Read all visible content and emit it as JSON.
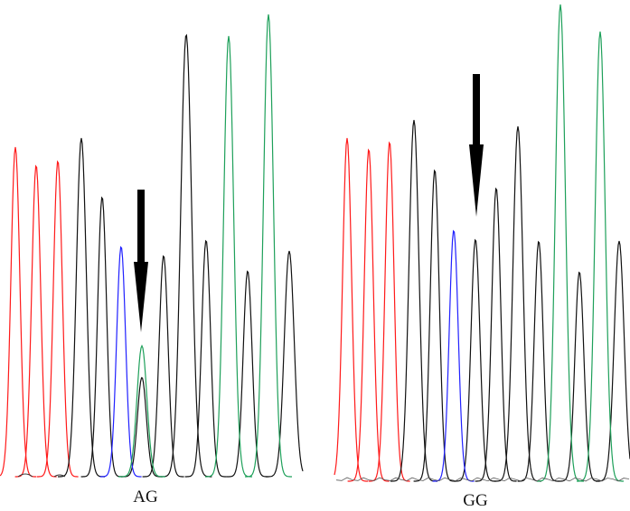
{
  "chart_data": [
    {
      "type": "line",
      "genotype_label": "AG",
      "colors": {
        "A": "#1ea05a",
        "C": "#2020ff",
        "G": "#111111",
        "T": "#ff1a1a"
      },
      "series": [
        {
          "base": "T",
          "peaks": [
            {
              "x": 17,
              "h": 365,
              "w": 9
            },
            {
              "x": 40,
              "h": 345,
              "w": 9
            },
            {
              "x": 64,
              "h": 350,
              "w": 9
            }
          ]
        },
        {
          "base": "G",
          "peaks": [
            {
              "x": 90,
              "h": 375,
              "w": 10
            },
            {
              "x": 113,
              "h": 310,
              "w": 9
            },
            {
              "x": 157,
              "h": 110,
              "w": 9
            },
            {
              "x": 181,
              "h": 245,
              "w": 9
            },
            {
              "x": 206,
              "h": 490,
              "w": 11
            },
            {
              "x": 228,
              "h": 262,
              "w": 9
            },
            {
              "x": 274,
              "h": 228,
              "w": 9
            },
            {
              "x": 320,
              "h": 250,
              "w": 10
            }
          ]
        },
        {
          "base": "C",
          "peaks": [
            {
              "x": 134,
              "h": 255,
              "w": 9
            }
          ]
        },
        {
          "base": "A",
          "peaks": [
            {
              "x": 157,
              "h": 145,
              "w": 10
            },
            {
              "x": 253,
              "h": 488,
              "w": 10
            },
            {
              "x": 297,
              "h": 512,
              "w": 10
            }
          ]
        }
      ]
    },
    {
      "type": "line",
      "genotype_label": "GG",
      "colors": {
        "A": "#1ea05a",
        "C": "#2020ff",
        "G": "#111111",
        "T": "#ff1a1a"
      },
      "series": [
        {
          "base": "T",
          "peaks": [
            {
              "x": 384,
              "h": 380,
              "w": 9
            },
            {
              "x": 408,
              "h": 368,
              "w": 9
            },
            {
              "x": 431,
              "h": 376,
              "w": 9
            }
          ]
        },
        {
          "base": "G",
          "peaks": [
            {
              "x": 458,
              "h": 400,
              "w": 10
            },
            {
              "x": 481,
              "h": 345,
              "w": 9
            },
            {
              "x": 526,
              "h": 268,
              "w": 9
            },
            {
              "x": 549,
              "h": 325,
              "w": 9
            },
            {
              "x": 573,
              "h": 393,
              "w": 10
            },
            {
              "x": 596,
              "h": 266,
              "w": 9
            },
            {
              "x": 641,
              "h": 232,
              "w": 9
            },
            {
              "x": 685,
              "h": 266,
              "w": 10
            }
          ]
        },
        {
          "base": "C",
          "peaks": [
            {
              "x": 502,
              "h": 278,
              "w": 9
            }
          ]
        },
        {
          "base": "A",
          "peaks": [
            {
              "x": 620,
              "h": 528,
              "w": 10
            },
            {
              "x": 664,
              "h": 498,
              "w": 10
            }
          ]
        }
      ]
    }
  ]
}
